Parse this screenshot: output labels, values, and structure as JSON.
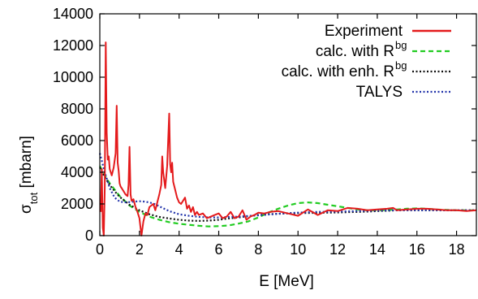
{
  "chart_data": {
    "type": "line",
    "title": "",
    "xlabel": "E [MeV]",
    "ylabel": "σ_tot [mbarn]",
    "ylabel_parts": {
      "base": "σ",
      "sub": "tot",
      "unit": " [mbarn]"
    },
    "xlim": [
      0,
      19
    ],
    "ylim": [
      0,
      14000
    ],
    "xticks": [
      "0",
      "2",
      "4",
      "6",
      "8",
      "10",
      "12",
      "14",
      "16",
      "18"
    ],
    "yticks": [
      "0",
      "2000",
      "4000",
      "6000",
      "8000",
      "10000",
      "12000",
      "14000"
    ],
    "grid": false,
    "legend_position": "top-right",
    "legend": [
      {
        "text": "Experiment",
        "sup": ""
      },
      {
        "text": "calc. with R",
        "sup": "bg"
      },
      {
        "text": "calc. with enh. R",
        "sup": "bg"
      },
      {
        "text": "TALYS",
        "sup": ""
      }
    ],
    "series": [
      {
        "name": "Experiment",
        "color": "#e41a1c",
        "dash": "solid",
        "x": [
          0.05,
          0.1,
          0.15,
          0.2,
          0.25,
          0.3,
          0.35,
          0.4,
          0.45,
          0.5,
          0.6,
          0.7,
          0.8,
          0.85,
          0.9,
          0.95,
          1.0,
          1.05,
          1.1,
          1.2,
          1.3,
          1.4,
          1.45,
          1.5,
          1.55,
          1.6,
          1.7,
          1.8,
          1.9,
          2.0,
          2.1,
          2.2,
          2.3,
          2.4,
          2.5,
          2.6,
          2.7,
          2.8,
          2.9,
          3.0,
          3.1,
          3.15,
          3.2,
          3.3,
          3.4,
          3.5,
          3.55,
          3.6,
          3.65,
          3.7,
          3.8,
          3.9,
          4.0,
          4.1,
          4.2,
          4.3,
          4.4,
          4.5,
          4.6,
          4.7,
          4.8,
          4.9,
          5.0,
          5.2,
          5.4,
          5.6,
          5.8,
          6.0,
          6.2,
          6.4,
          6.6,
          6.8,
          7.0,
          7.2,
          7.4,
          7.6,
          7.8,
          8.0,
          8.3,
          8.6,
          9.0,
          9.5,
          10.0,
          10.5,
          11.0,
          11.5,
          12.0,
          12.5,
          13.0,
          13.5,
          14.0,
          14.5,
          14.8,
          15.0,
          15.5,
          16.0,
          16.5,
          17.0,
          17.5,
          18.0,
          18.5,
          19.0
        ],
        "y": [
          1500,
          4200,
          500,
          0,
          3000,
          12200,
          6500,
          4800,
          5000,
          4200,
          3800,
          4300,
          5200,
          8200,
          4600,
          4100,
          3300,
          3100,
          3000,
          2800,
          2600,
          2500,
          3200,
          5600,
          2600,
          2200,
          2300,
          1800,
          1500,
          1100,
          0,
          900,
          1400,
          1300,
          1800,
          1900,
          2000,
          1600,
          2100,
          2600,
          3200,
          5000,
          4000,
          3000,
          4400,
          7700,
          4500,
          4000,
          4600,
          3400,
          2900,
          2400,
          2100,
          2000,
          2200,
          2400,
          1700,
          1900,
          1500,
          1800,
          1300,
          1500,
          1300,
          1400,
          1100,
          1200,
          1300,
          1400,
          1100,
          1200,
          1500,
          1100,
          1200,
          1600,
          1000,
          1200,
          1300,
          1450,
          1400,
          1500,
          1550,
          1400,
          1250,
          1650,
          1300,
          1600,
          1550,
          1750,
          1700,
          1600,
          1650,
          1700,
          1750,
          1600,
          1650,
          1700,
          1700,
          1650,
          1600,
          1600,
          1550,
          1600
        ]
      },
      {
        "name": "calc. with R^bg",
        "color": "#22cc22",
        "dash": "dashed",
        "x": [
          0,
          0.25,
          0.5,
          0.75,
          1.0,
          1.5,
          2.0,
          2.5,
          3.0,
          3.5,
          4.0,
          4.5,
          5.0,
          5.5,
          6.0,
          6.5,
          7.0,
          7.5,
          8.0,
          8.5,
          9.0,
          9.5,
          10.0,
          10.5,
          11.0,
          11.5,
          12.0,
          12.5,
          13.0,
          13.5,
          14.0,
          14.5,
          15.0,
          15.5,
          16.0,
          16.5,
          17.0,
          17.5,
          18.0,
          18.5,
          19.0
        ],
        "y": [
          4400,
          3800,
          3300,
          2900,
          2500,
          1900,
          1500,
          1200,
          1000,
          850,
          750,
          680,
          620,
          580,
          600,
          640,
          760,
          900,
          1150,
          1450,
          1700,
          1900,
          2050,
          2100,
          2050,
          1950,
          1850,
          1750,
          1650,
          1600,
          1600,
          1620,
          1650,
          1700,
          1720,
          1700,
          1650,
          1620,
          1600,
          1600,
          1600
        ]
      },
      {
        "name": "calc. with enh. R^bg",
        "color": "#111111",
        "dash": "dotted",
        "x": [
          0,
          0.25,
          0.5,
          0.75,
          1.0,
          1.5,
          2.0,
          2.5,
          3.0,
          3.5,
          4.0,
          4.5,
          5.0,
          5.5,
          6.0,
          6.5,
          7.0,
          7.5,
          8.0,
          8.5,
          9.0,
          9.5,
          10.0,
          10.5,
          11.0,
          11.5,
          12.0,
          12.5,
          13.0,
          13.5,
          14.0,
          14.5,
          15.0,
          15.5,
          16.0,
          16.5,
          17.0,
          17.5,
          18.0,
          18.5,
          19.0
        ],
        "y": [
          4300,
          3700,
          3200,
          2800,
          2450,
          1950,
          1600,
          1350,
          1180,
          1080,
          1000,
          950,
          930,
          950,
          1000,
          1080,
          1150,
          1230,
          1300,
          1350,
          1380,
          1400,
          1420,
          1430,
          1440,
          1450,
          1460,
          1480,
          1500,
          1520,
          1550,
          1570,
          1600,
          1600,
          1600,
          1600,
          1600,
          1600,
          1600,
          1600,
          1600
        ]
      },
      {
        "name": "TALYS",
        "color": "#2233aa",
        "dash": "dotted",
        "x": [
          0,
          0.25,
          0.5,
          0.75,
          1.0,
          1.25,
          1.5,
          1.75,
          2.0,
          2.25,
          2.5,
          2.75,
          3.0,
          3.25,
          3.5,
          4.0,
          4.5,
          5.0,
          5.5,
          6.0,
          7.0,
          8.0,
          9.0,
          10.0,
          11.0,
          12.0,
          13.0,
          14.0,
          15.0,
          16.0,
          17.0,
          18.0,
          19.0
        ],
        "y": [
          5200,
          4000,
          3000,
          2400,
          2150,
          2100,
          2120,
          2150,
          2170,
          2150,
          2100,
          2000,
          1850,
          1700,
          1550,
          1350,
          1250,
          1180,
          1150,
          1150,
          1200,
          1280,
          1380,
          1450,
          1500,
          1520,
          1550,
          1580,
          1600,
          1600,
          1600,
          1600,
          1600
        ]
      }
    ]
  }
}
